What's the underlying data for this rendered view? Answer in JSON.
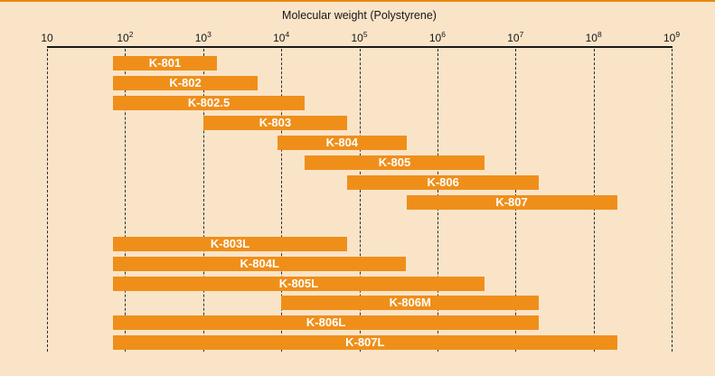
{
  "chart_data": {
    "type": "bar",
    "subtype": "horizontal-log-range-bars",
    "title": "Molecular weight (Polystyrene)",
    "x_axis": {
      "scale": "log10",
      "tick_base": "10",
      "tick_exponents": [
        1,
        2,
        3,
        4,
        5,
        6,
        7,
        8,
        9
      ],
      "min_exponent": 1,
      "max_exponent": 9,
      "grid": "dashed-vertical"
    },
    "colors": {
      "background": "#fae4c8",
      "bar": "#ef8f1a",
      "bar_label_text": "#ffffff",
      "axis": "#1a1a1a",
      "top_accent": "#e8860f"
    },
    "legend_position": "none",
    "series": [
      {
        "label": "K-801",
        "start": 70,
        "end": 1500,
        "group": 1
      },
      {
        "label": "K-802",
        "start": 70,
        "end": 5000,
        "group": 1
      },
      {
        "label": "K-802.5",
        "start": 70,
        "end": 20000,
        "group": 1
      },
      {
        "label": "K-803",
        "start": 1000,
        "end": 70000,
        "group": 1
      },
      {
        "label": "K-804",
        "start": 9000,
        "end": 400000,
        "group": 1
      },
      {
        "label": "K-805",
        "start": 20000,
        "end": 4000000,
        "group": 1
      },
      {
        "label": "K-806",
        "start": 70000,
        "end": 20000000,
        "group": 1
      },
      {
        "label": "K-807",
        "start": 400000,
        "end": 200000000,
        "group": 1
      },
      {
        "label": "K-803L",
        "start": 70,
        "end": 70000,
        "group": 2
      },
      {
        "label": "K-804L",
        "start": 70,
        "end": 400000,
        "group": 2
      },
      {
        "label": "K-805L",
        "start": 70,
        "end": 4000000,
        "group": 2
      },
      {
        "label": "K-806M",
        "start": 10000,
        "end": 20000000,
        "group": 2
      },
      {
        "label": "K-806L",
        "start": 70,
        "end": 20000000,
        "group": 2
      },
      {
        "label": "K-807L",
        "start": 70,
        "end": 200000000,
        "group": 2
      }
    ]
  }
}
